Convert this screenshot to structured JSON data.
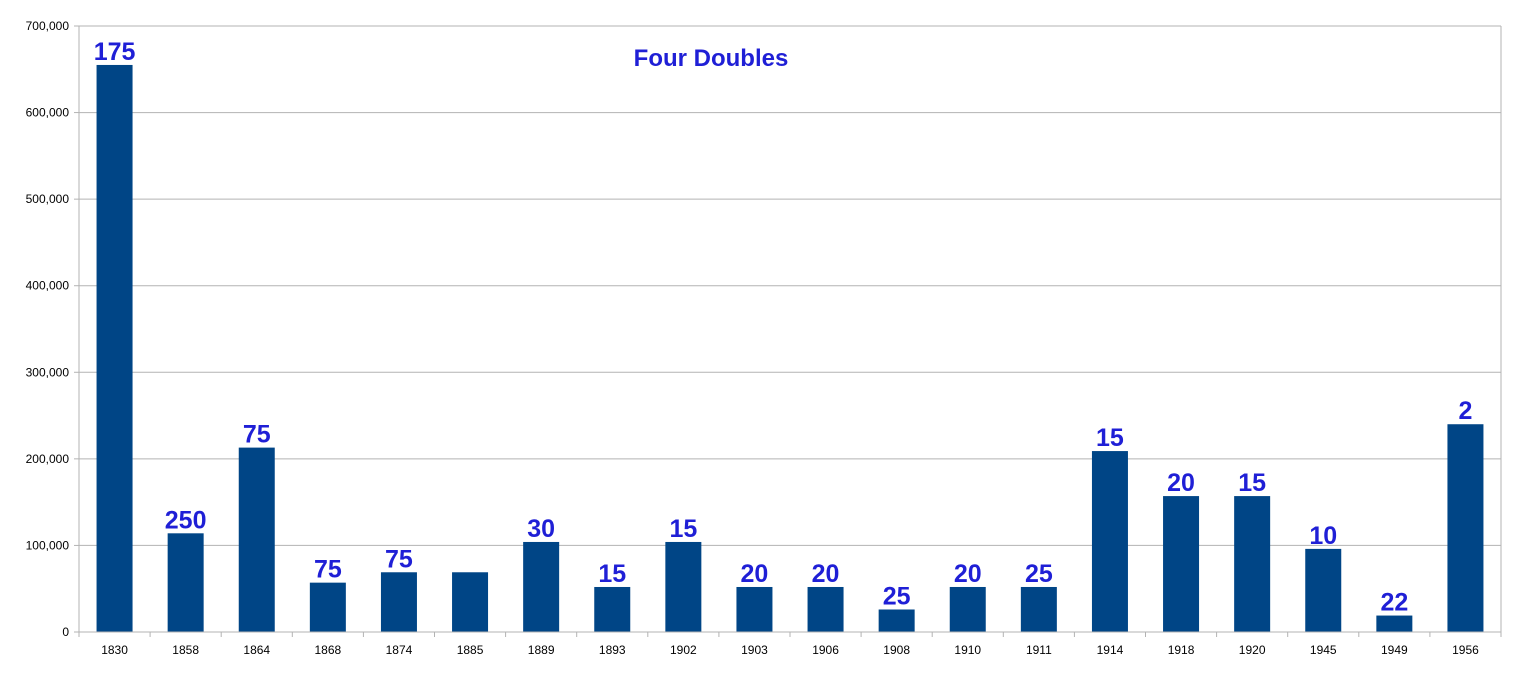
{
  "colors": {
    "bar": "#004586",
    "label": "#1f1fd6",
    "grid": "#b3b3b3",
    "axis": "#b3b3b3"
  },
  "chart_data": {
    "type": "bar",
    "title": "Four Doubles",
    "xlabel": "",
    "ylabel": "",
    "ylim": [
      0,
      700000
    ],
    "yticks": [
      0,
      100000,
      200000,
      300000,
      400000,
      500000,
      600000,
      700000
    ],
    "ytick_labels": [
      "0",
      "100,000",
      "200,000",
      "300,000",
      "400,000",
      "500,000",
      "600,000",
      "700,000"
    ],
    "grid": true,
    "legend": "none",
    "categories": [
      "1830",
      "1858",
      "1864",
      "1868",
      "1874",
      "1885",
      "1889",
      "1893",
      "1902",
      "1903",
      "1906",
      "1908",
      "1910",
      "1911",
      "1914",
      "1918",
      "1920",
      "1945",
      "1949",
      "1956"
    ],
    "values": [
      655000,
      114000,
      213000,
      57000,
      69000,
      69000,
      104000,
      52000,
      104000,
      52000,
      52000,
      26000,
      52000,
      52000,
      209000,
      157000,
      157000,
      96000,
      19000,
      240000
    ],
    "data_labels": [
      "175",
      "250",
      "75",
      "75",
      "75",
      "",
      "30",
      "15",
      "15",
      "20",
      "20",
      "25",
      "20",
      "25",
      "15",
      "20",
      "15",
      "10",
      "22",
      "2"
    ]
  }
}
